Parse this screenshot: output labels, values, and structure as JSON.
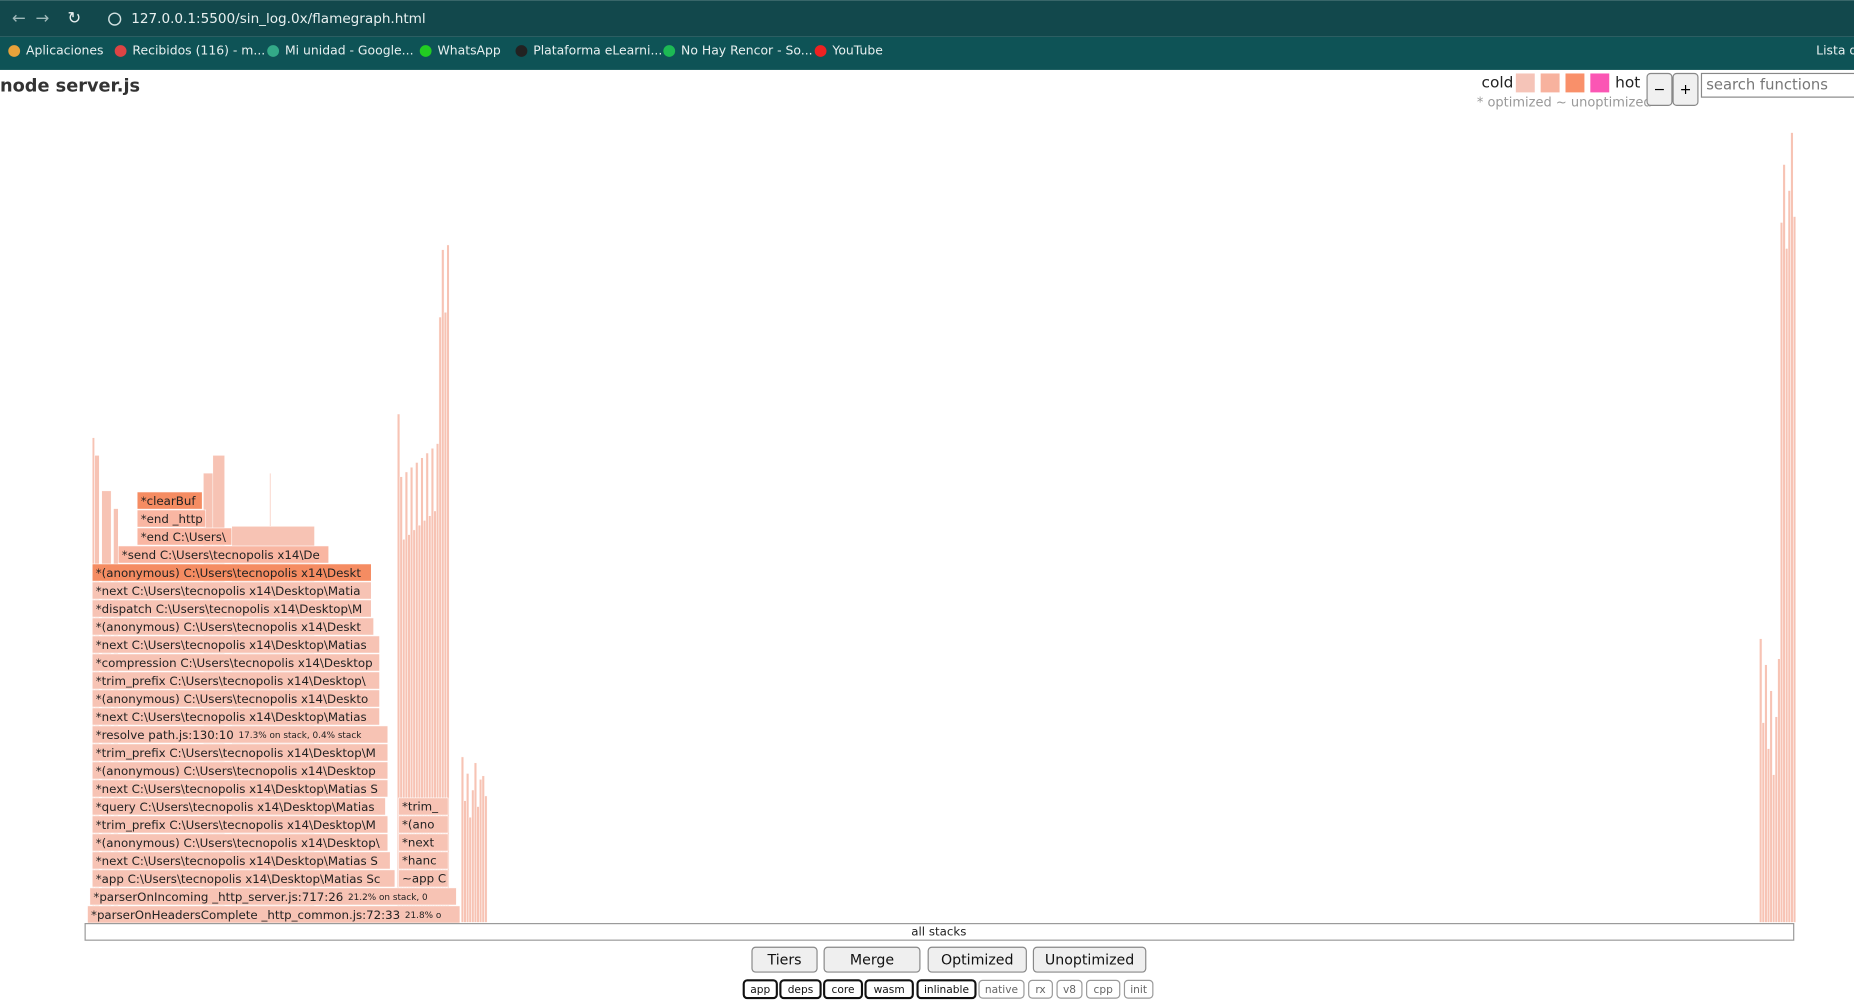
{
  "browser": {
    "url": "127.0.0.1:5500/sin_log.0x/flamegraph.html",
    "bookmarks": [
      "Aplicaciones",
      "Recibidos (116) - m...",
      "Mi unidad - Google...",
      "WhatsApp",
      "Plataforma eLearni...",
      "No Hay Rencor - So...",
      "YouTube"
    ],
    "reading_list": "Lista de"
  },
  "header": {
    "title": "node server.js",
    "legend_cold": "cold",
    "legend_hot": "hot",
    "legend_note": "* optimized ~ unoptimized",
    "zoom_out": "−",
    "zoom_in": "+",
    "search_placeholder": "search functions"
  },
  "frames": [
    {
      "label": "*parserOnHeadersComplete _http_common.js:72:33",
      "note": "21.8% o"
    },
    {
      "label": "*parserOnIncoming _http_server.js:717:26",
      "note": "21.2% on stack, 0"
    },
    {
      "label": "*app C:\\Users\\tecnopolis x14\\Desktop\\Matias Sc"
    },
    {
      "label": "*next C:\\Users\\tecnopolis x14\\Desktop\\Matias S"
    },
    {
      "label": "*(anonymous) C:\\Users\\tecnopolis x14\\Desktop\\"
    },
    {
      "label": "*trim_prefix C:\\Users\\tecnopolis x14\\Desktop\\M"
    },
    {
      "label": "*query C:\\Users\\tecnopolis x14\\Desktop\\Matias"
    },
    {
      "label": "*next C:\\Users\\tecnopolis x14\\Desktop\\Matias S"
    },
    {
      "label": "*(anonymous) C:\\Users\\tecnopolis x14\\Desktop"
    },
    {
      "label": "*trim_prefix C:\\Users\\tecnopolis x14\\Desktop\\M"
    },
    {
      "label": "*resolve path.js:130:10",
      "note": "17.3% on stack, 0.4% stack"
    },
    {
      "label": "*next C:\\Users\\tecnopolis x14\\Desktop\\Matias"
    },
    {
      "label": "*(anonymous) C:\\Users\\tecnopolis x14\\Deskto"
    },
    {
      "label": "*trim_prefix C:\\Users\\tecnopolis x14\\Desktop\\"
    },
    {
      "label": "*compression C:\\Users\\tecnopolis x14\\Desktop"
    },
    {
      "label": "*next C:\\Users\\tecnopolis x14\\Desktop\\Matias"
    },
    {
      "label": "*(anonymous) C:\\Users\\tecnopolis x14\\Deskt"
    },
    {
      "label": "*dispatch C:\\Users\\tecnopolis x14\\Desktop\\M"
    },
    {
      "label": "*next C:\\Users\\tecnopolis x14\\Desktop\\Matia"
    },
    {
      "label": "*(anonymous) C:\\Users\\tecnopolis x14\\Deskt"
    },
    {
      "label": "*send C:\\Users\\tecnopolis x14\\De"
    },
    {
      "label": "*end C:\\Users\\"
    },
    {
      "label": "*end _http"
    },
    {
      "label": "*clearBuf"
    }
  ],
  "side_frames": [
    "~app C",
    "*hanc",
    "*next",
    "*(ano",
    "*trim_"
  ],
  "root_label": "all stacks",
  "buttons": [
    "Tiers",
    "Merge",
    "Optimized",
    "Unoptimized"
  ],
  "filters": [
    "app",
    "deps",
    "core",
    "wasm",
    "inlinable",
    "native",
    "rx",
    "v8",
    "cpp",
    "init"
  ]
}
